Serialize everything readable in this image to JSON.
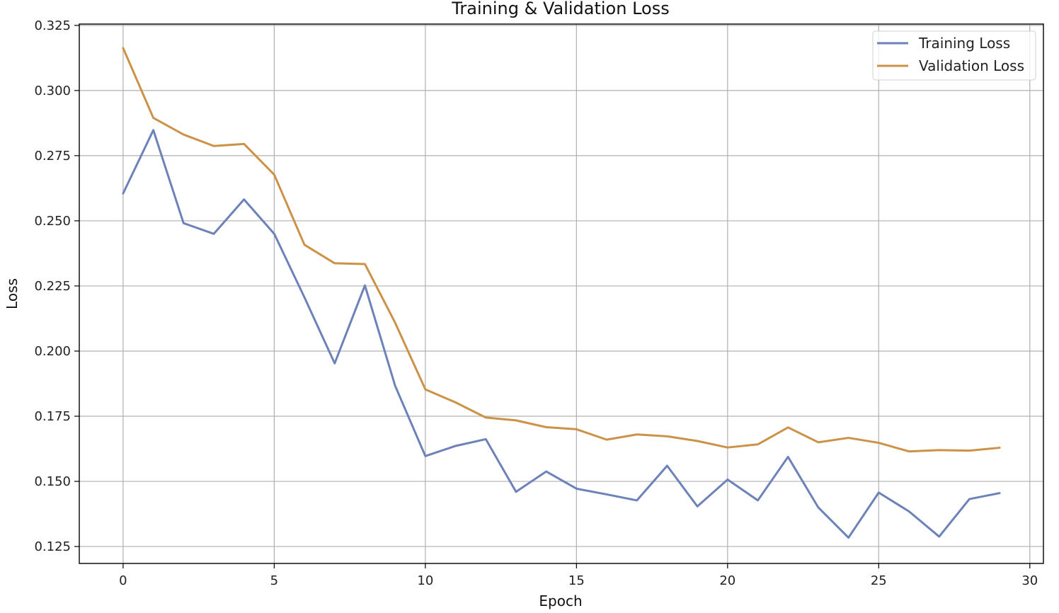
{
  "chart_data": {
    "type": "line",
    "title": "Training & Validation Loss",
    "xlabel": "Epoch",
    "ylabel": "Loss",
    "xlim": [
      -1.45,
      30.45
    ],
    "ylim": [
      0.1185,
      0.3255
    ],
    "xticks": [
      0,
      5,
      10,
      15,
      20,
      25,
      30
    ],
    "yticks": [
      0.125,
      0.15,
      0.175,
      0.2,
      0.225,
      0.25,
      0.275,
      0.3,
      0.325
    ],
    "ytick_labels": [
      "0.125",
      "0.150",
      "0.175",
      "0.200",
      "0.225",
      "0.250",
      "0.275",
      "0.300",
      "0.325"
    ],
    "grid": true,
    "legend_position": "top-right",
    "x": [
      0,
      1,
      2,
      3,
      4,
      5,
      6,
      7,
      8,
      9,
      10,
      11,
      12,
      13,
      14,
      15,
      16,
      17,
      18,
      19,
      20,
      21,
      22,
      23,
      24,
      25,
      26,
      27,
      28,
      29
    ],
    "series": [
      {
        "name": "Training Loss",
        "color": "#6c82b8",
        "values": [
          0.2605,
          0.2848,
          0.2491,
          0.245,
          0.2582,
          0.245,
          0.2206,
          0.1953,
          0.2252,
          0.1867,
          0.1597,
          0.1636,
          0.1662,
          0.146,
          0.1538,
          0.1472,
          0.145,
          0.1427,
          0.156,
          0.1404,
          0.1507,
          0.1427,
          0.1594,
          0.14,
          0.1284,
          0.1457,
          0.1385,
          0.1288,
          0.1432,
          0.1455
        ]
      },
      {
        "name": "Validation Loss",
        "color": "#cc9248",
        "values": [
          0.3163,
          0.2895,
          0.2831,
          0.2787,
          0.2795,
          0.2677,
          0.2408,
          0.2337,
          0.2334,
          0.2109,
          0.1853,
          0.1803,
          0.1745,
          0.1734,
          0.1708,
          0.17,
          0.166,
          0.168,
          0.1673,
          0.1655,
          0.163,
          0.1642,
          0.1707,
          0.165,
          0.1667,
          0.1648,
          0.1615,
          0.162,
          0.1618,
          0.1629
        ]
      }
    ]
  }
}
